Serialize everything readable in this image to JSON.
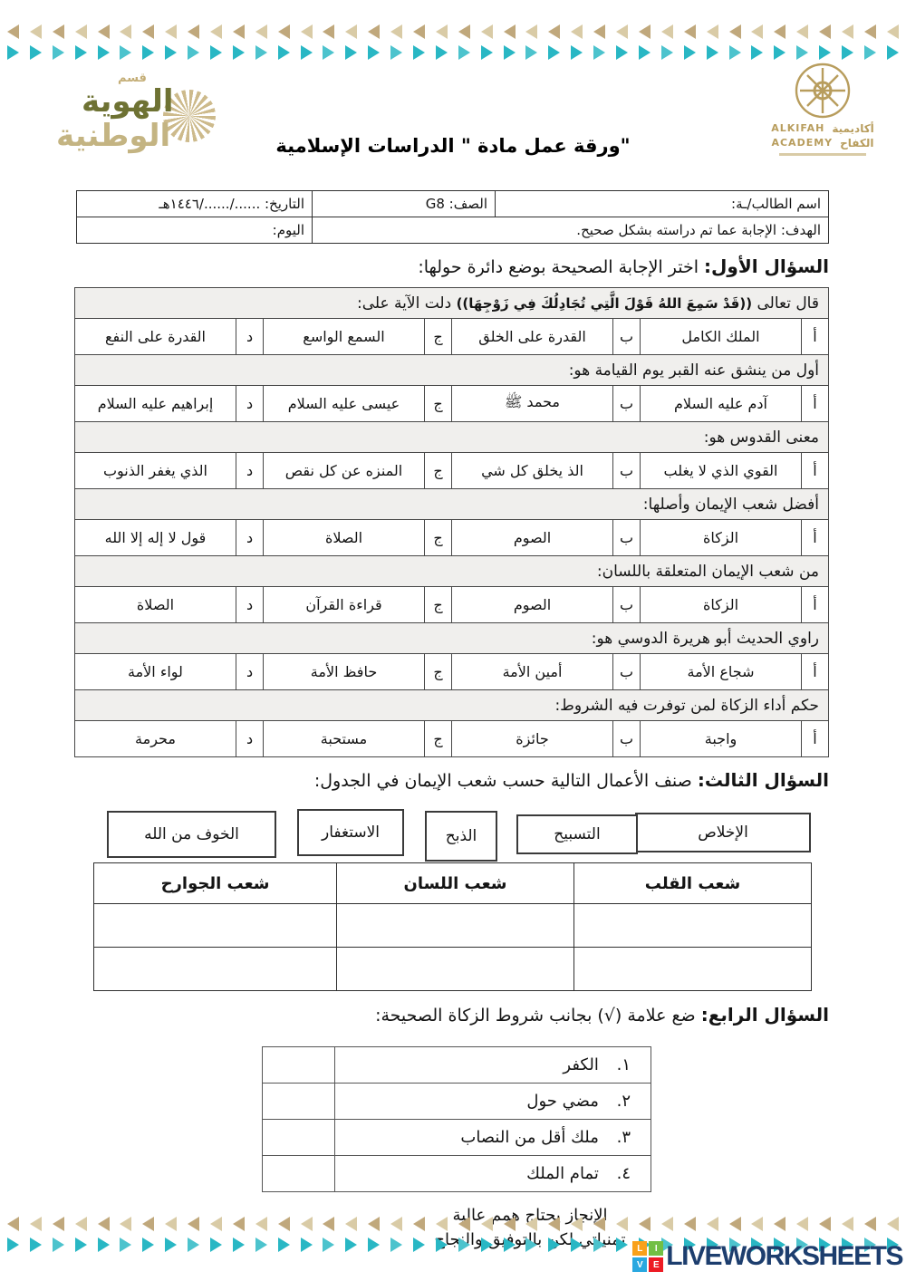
{
  "page": {
    "title": "ورقة عمل مادة \" الدراسات الإسلامية\""
  },
  "logos": {
    "dept": {
      "top": "قسم",
      "line1": "الهوية",
      "line2": "الوطنية"
    },
    "academy": {
      "ar1": "أكاديمية",
      "ar2": "الكفاح",
      "en1": "ALKIFAH",
      "en2": "ACADEMY"
    }
  },
  "info": {
    "student_name_label": "اسم الطالب/ـة:",
    "class_label": "الصف: G8",
    "date_label": "التاريخ: ....../....../١٤٤٦هـ",
    "goal_label": "الهدف: الإجابة عما تم دراسته بشكل صحيح.",
    "day_label": "اليوم:"
  },
  "sections": {
    "q1": {
      "label": "السؤال الأول:",
      "text": "اختر الإجابة الصحيحة بوضع دائرة حولها:"
    },
    "q3": {
      "label": "السؤال الثالث:",
      "text": "صنف الأعمال التالية حسب شعب الإيمان في الجدول:"
    },
    "q4": {
      "label": "السؤال الرابع:",
      "text": "ضع علامة (√) بجانب شروط الزكاة الصحيحة:"
    }
  },
  "mcq": {
    "letters": [
      "أ",
      "ب",
      "ج",
      "د"
    ],
    "questions": [
      {
        "pre": "قال تعالى",
        "verse": "((قَدْ سَمِعَ اللهُ قَوْلَ الَّتِي تُجَادِلُكَ فِي زَوْجِهَا))",
        "post": "دلت الآية على:",
        "options": [
          "الملك الكامل",
          "القدرة على الخلق",
          "السمع الواسع",
          "القدرة على النفع"
        ]
      },
      {
        "text": "أول من ينشق عنه القبر يوم القيامة هو:",
        "options": [
          "آدم عليه السلام",
          "محمد ﷺ",
          "عيسى عليه السلام",
          "إبراهيم عليه السلام"
        ]
      },
      {
        "text": "معنى القدوس هو:",
        "options": [
          "القوي الذي لا يغلب",
          "الذ يخلق كل شي",
          "المنزه عن كل نقص",
          "الذي يغفر الذنوب"
        ]
      },
      {
        "text": "أفضل شعب الإيمان وأصلها:",
        "options": [
          "الزكاة",
          "الصوم",
          "الصلاة",
          "قول لا إله إلا الله"
        ]
      },
      {
        "text": "من شعب الإيمان المتعلقة باللسان:",
        "options": [
          "الزكاة",
          "الصوم",
          "قراءة القرآن",
          "الصلاة"
        ]
      },
      {
        "text": "راوي الحديث أبو هريرة الدوسي هو:",
        "options": [
          "شجاع الأمة",
          "أمين الأمة",
          "حافظ الأمة",
          "لواء الأمة"
        ]
      },
      {
        "text": "حكم أداء الزكاة لمن توفرت فيه الشروط:",
        "options": [
          "واجبة",
          "جائزة",
          "مستحبة",
          "محرمة"
        ]
      }
    ]
  },
  "wordbank": [
    "الإخلاص",
    "التسبيح",
    "الذبح",
    "الاستغفار",
    "الخوف من الله"
  ],
  "classify": {
    "headers": [
      "شعب القلب",
      "شعب اللسان",
      "شعب الجوارح"
    ]
  },
  "checklist": {
    "items": [
      {
        "num": "١.",
        "text": "الكفر"
      },
      {
        "num": "٢.",
        "text": "مضي حول"
      },
      {
        "num": "٣.",
        "text": "ملك أقل من النصاب"
      },
      {
        "num": "٤.",
        "text": "تمام الملك"
      }
    ]
  },
  "footer": {
    "line1": "الإنجاز يحتاج همم عالية",
    "line2": "تمنياتي لكن بالتوفيق والنجاح"
  },
  "branding": {
    "name": "LIVEWORKSHEETS",
    "blocks": [
      "L",
      "I",
      "V",
      "E"
    ],
    "block_colors": [
      "#f9a11b",
      "#72bf44",
      "#29a8e0",
      "#ed1b24"
    ],
    "text_color": "#1d3e6e"
  },
  "decoration": {
    "bands": {
      "top_tan": {
        "count": 40,
        "dir": "left",
        "colors": [
          "#c0a87c",
          "#d9cba6"
        ]
      },
      "top_teal": {
        "count": 40,
        "dir": "right",
        "colors": [
          "#29b7c4",
          "#29b7c4",
          "#4cc3cd"
        ]
      },
      "bottom_tan": {
        "count": 40,
        "dir": "left",
        "colors": [
          "#c0a87c",
          "#d9cba6"
        ]
      },
      "bottom_teal": {
        "count": 40,
        "dir": "right",
        "colors": [
          "#29b7c4",
          "#29b7c4",
          "#4cc3cd"
        ]
      }
    }
  }
}
